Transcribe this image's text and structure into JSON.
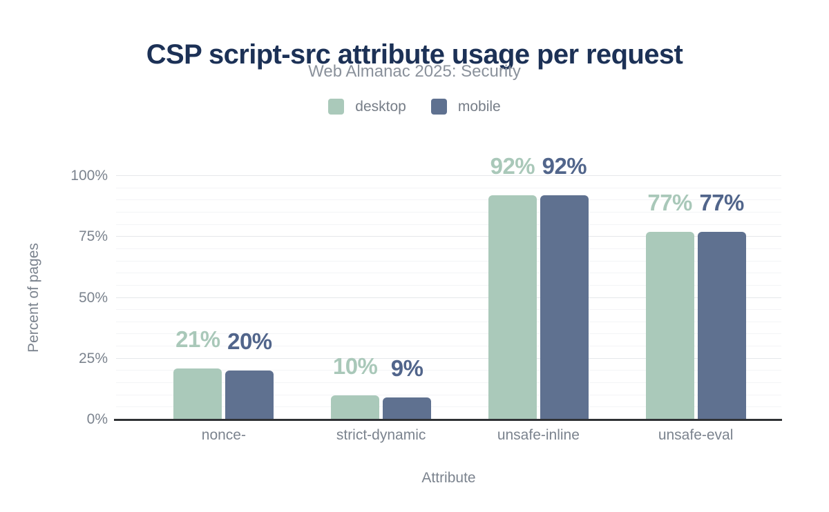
{
  "header": {
    "title": "CSP script-src attribute usage per request",
    "subtitle": "Web Almanac 2025: Security"
  },
  "chart_data": {
    "type": "bar",
    "title": "CSP script-src attribute usage per request",
    "subtitle": "Web Almanac 2025: Security",
    "categories": [
      "nonce-",
      "strict-dynamic",
      "unsafe-inline",
      "unsafe-eval"
    ],
    "series": [
      {
        "name": "desktop",
        "values": [
          21,
          10,
          92,
          77
        ],
        "bar_color": "#aac9ba",
        "label_color": "#a9c8b9"
      },
      {
        "name": "mobile",
        "values": [
          20,
          9,
          92,
          77
        ],
        "bar_color": "#5f7190",
        "label_color": "#51658b"
      }
    ],
    "value_suffix": "%",
    "xlabel": "Attribute",
    "ylabel": "Percent of pages",
    "ylim": [
      0,
      100
    ],
    "yticks": [
      0,
      25,
      50,
      75,
      100
    ],
    "ytick_labels": [
      "0%",
      "25%",
      "50%",
      "75%",
      "100%"
    ],
    "major_grid_step": 25,
    "minor_grid_step": 5,
    "grid": "on",
    "legend_position": "top"
  },
  "colors": {
    "title": "#1c3156",
    "subtitle": "#8a919b",
    "legend_text": "#767d87",
    "axis_text": "#7b838e",
    "grid_major": "#e5e7ea",
    "grid_minor": "#f3f4f6",
    "baseline": "#2f3235",
    "background": "#ffffff"
  }
}
